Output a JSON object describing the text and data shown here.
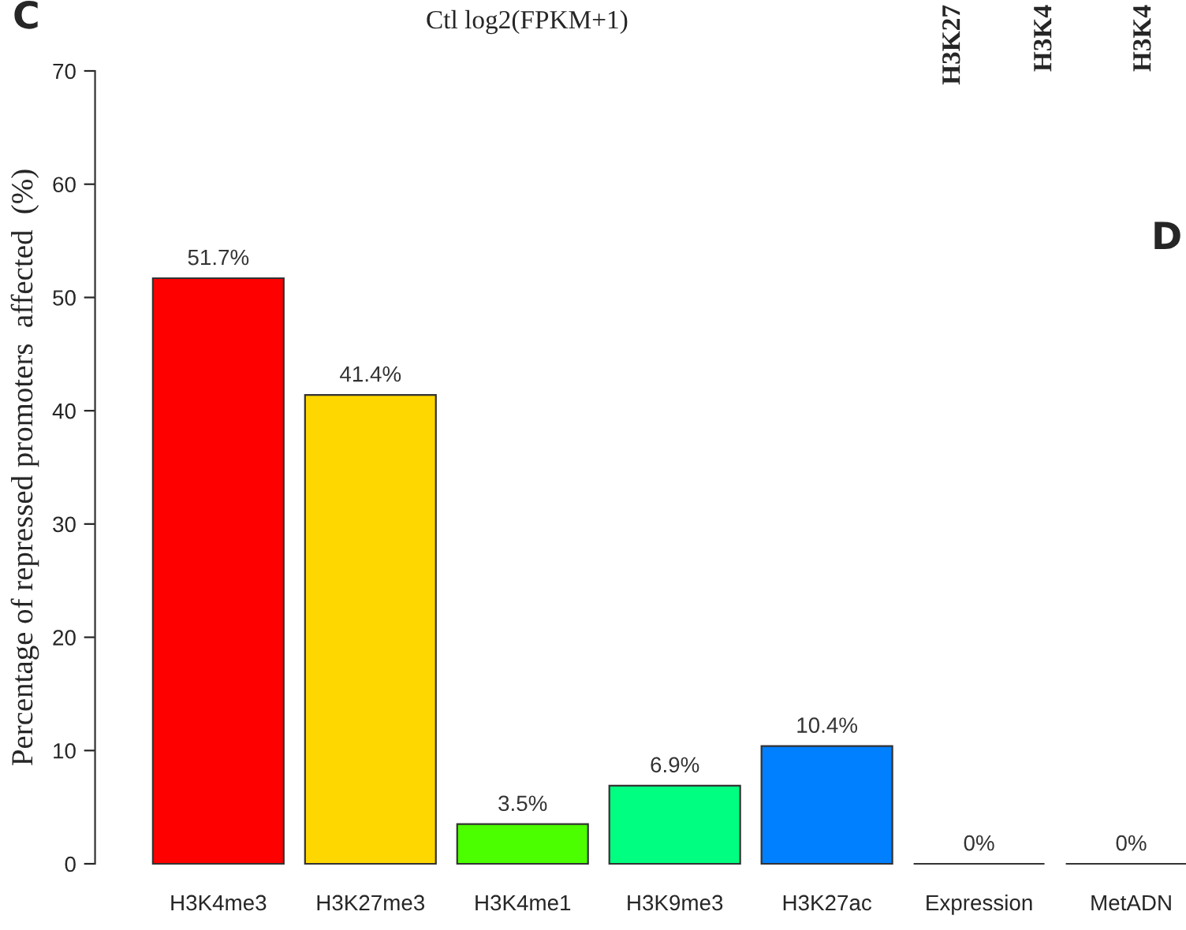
{
  "chart_data": {
    "type": "bar",
    "ylabel": "Percentage of repressed promoters  affected  (%)",
    "categories": [
      "H3K4me3",
      "H3K27me3",
      "H3K4me1",
      "H3K9me3",
      "H3K27ac",
      "Expression",
      "MetADN"
    ],
    "values": [
      51.7,
      41.4,
      3.5,
      6.9,
      10.4,
      0,
      0
    ],
    "colors": [
      "#ff0000",
      "#ffd700",
      "#4cff00",
      "#00ff80",
      "#0080ff",
      "#333333",
      "#333333"
    ],
    "value_labels": [
      "51.7%",
      "41.4%",
      "3.5%",
      "6.9%",
      "10.4%",
      "0%",
      "0%"
    ],
    "ylim": [
      0,
      70
    ],
    "yticks": [
      0,
      10,
      20,
      30,
      40,
      50,
      60,
      70
    ],
    "grid": false,
    "annotations": [
      "C",
      "Ctl log2(FPKM+1)",
      "H3K27",
      "H3K4",
      "H3K4",
      "D"
    ]
  }
}
